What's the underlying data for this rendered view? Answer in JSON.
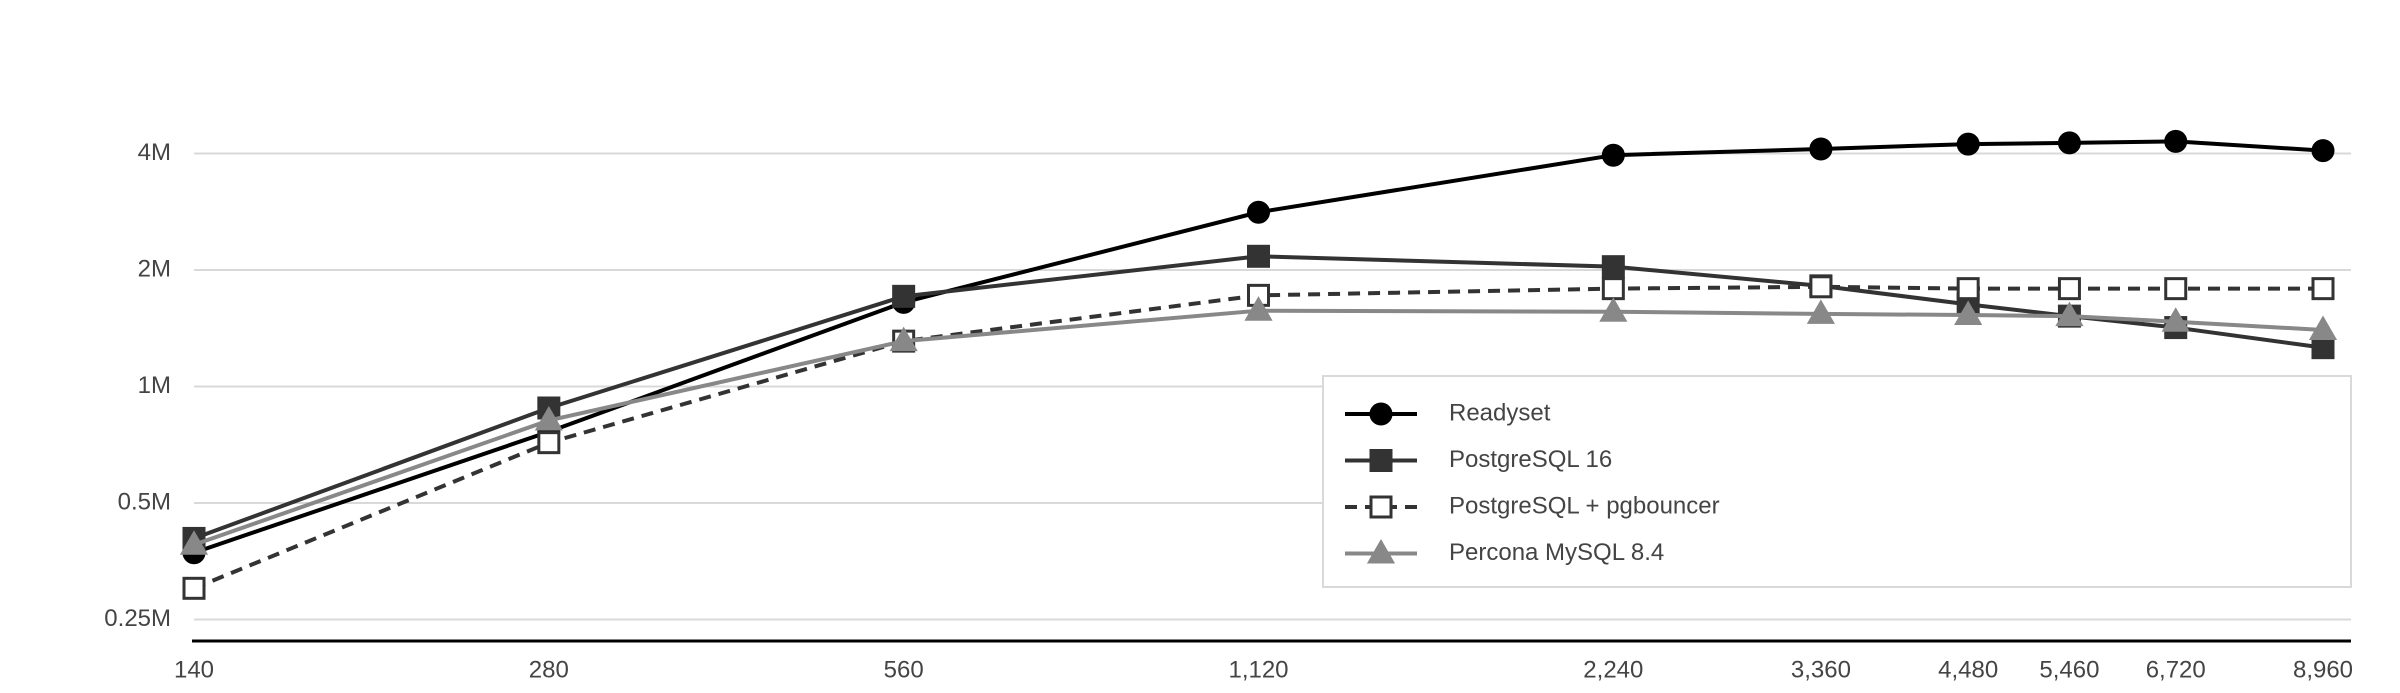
{
  "chart_data": {
    "type": "line",
    "x": [
      140,
      280,
      560,
      1120,
      2240,
      3360,
      4480,
      5460,
      6720,
      8960
    ],
    "xlim": [
      140,
      8960
    ],
    "xticks": [
      140,
      280,
      560,
      {
        "value": 1120,
        "label": "1,120"
      },
      {
        "value": 2240,
        "label": "2,240"
      },
      {
        "value": 3360,
        "label": "3,360"
      },
      {
        "value": 4480,
        "label": "4,480"
      },
      {
        "value": 5460,
        "label": "5,460"
      },
      {
        "value": 6720,
        "label": "6,720"
      },
      {
        "value": 8960,
        "label": "8,960"
      }
    ],
    "xscale": "log",
    "yscale": "log",
    "ylim": [
      220000,
      8000000
    ],
    "yticks": [
      {
        "value": 250000,
        "label": "0.25M"
      },
      {
        "value": 500000,
        "label": "0.5M"
      },
      {
        "value": 1000000,
        "label": "1M"
      },
      {
        "value": 2000000,
        "label": "2M"
      },
      {
        "value": 4000000,
        "label": "4M"
      }
    ],
    "grid": true,
    "legend": "right",
    "series": [
      {
        "name": "Readyset",
        "color": "#000000",
        "marker": "circle",
        "dashed": false,
        "values": [
          372000,
          764000,
          1650000,
          2820000,
          3960000,
          4110000,
          4230000,
          4260000,
          4300000,
          4070000
        ]
      },
      {
        "name": "PostgreSQL 16",
        "color": "#333333",
        "marker": "square",
        "dashed": false,
        "values": [
          405000,
          880000,
          1710000,
          2170000,
          2040000,
          1820000,
          1630000,
          1520000,
          1420000,
          1260000
        ]
      },
      {
        "name": "PostgreSQL + pgbouncer",
        "color": "#333333",
        "marker": "open-square",
        "dashed": true,
        "values": [
          301000,
          716000,
          1310000,
          1720000,
          1790000,
          1810000,
          1790000,
          1790000,
          1790000,
          1790000
        ]
      },
      {
        "name": "Percona MySQL 8.4",
        "color": "#888888",
        "marker": "triangle",
        "dashed": false,
        "values": [
          390000,
          817000,
          1310000,
          1570000,
          1560000,
          1540000,
          1530000,
          1520000,
          1470000,
          1400000
        ]
      }
    ]
  }
}
